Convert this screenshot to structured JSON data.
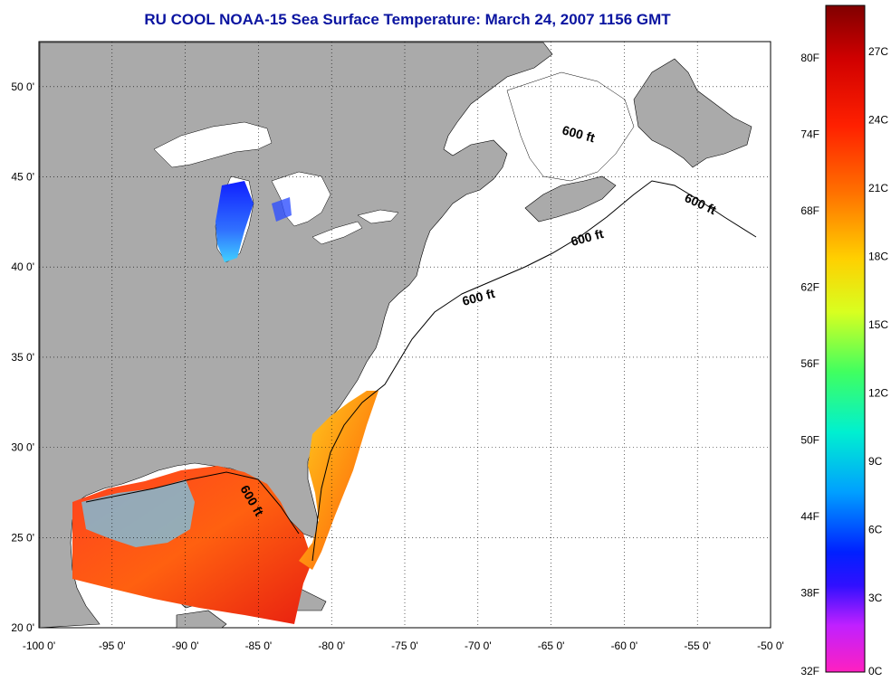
{
  "title": "RU COOL  NOAA-15  Sea Surface Temperature:  March 24, 2007 1156 GMT",
  "map": {
    "lon_range": [
      -100,
      -50
    ],
    "lat_range": [
      20,
      52.5
    ],
    "lon_ticks": [
      "-100 0'",
      "-95 0'",
      "-90 0'",
      "-85 0'",
      "-80 0'",
      "-75 0'",
      "-70 0'",
      "-65 0'",
      "-60 0'",
      "-55 0'",
      "-50 0'"
    ],
    "lat_ticks": [
      "20 0'",
      "25 0'",
      "30 0'",
      "35 0'",
      "40 0'",
      "45 0'",
      "50 0'"
    ],
    "grid": true,
    "land_color": "#aaaaaa",
    "ocean_color": "#ffffff",
    "contour_labels": [
      "600 ft",
      "600 ft",
      "600 ft",
      "600 ft",
      "600 ft"
    ]
  },
  "colorbar": {
    "fahrenheit_labels": [
      "80F",
      "74F",
      "68F",
      "62F",
      "56F",
      "50F",
      "44F",
      "38F",
      "32F"
    ],
    "celsius_labels": [
      "27C",
      "24C",
      "21C",
      "18C",
      "15C",
      "12C",
      "9C",
      "6C",
      "3C",
      "0C"
    ]
  }
}
